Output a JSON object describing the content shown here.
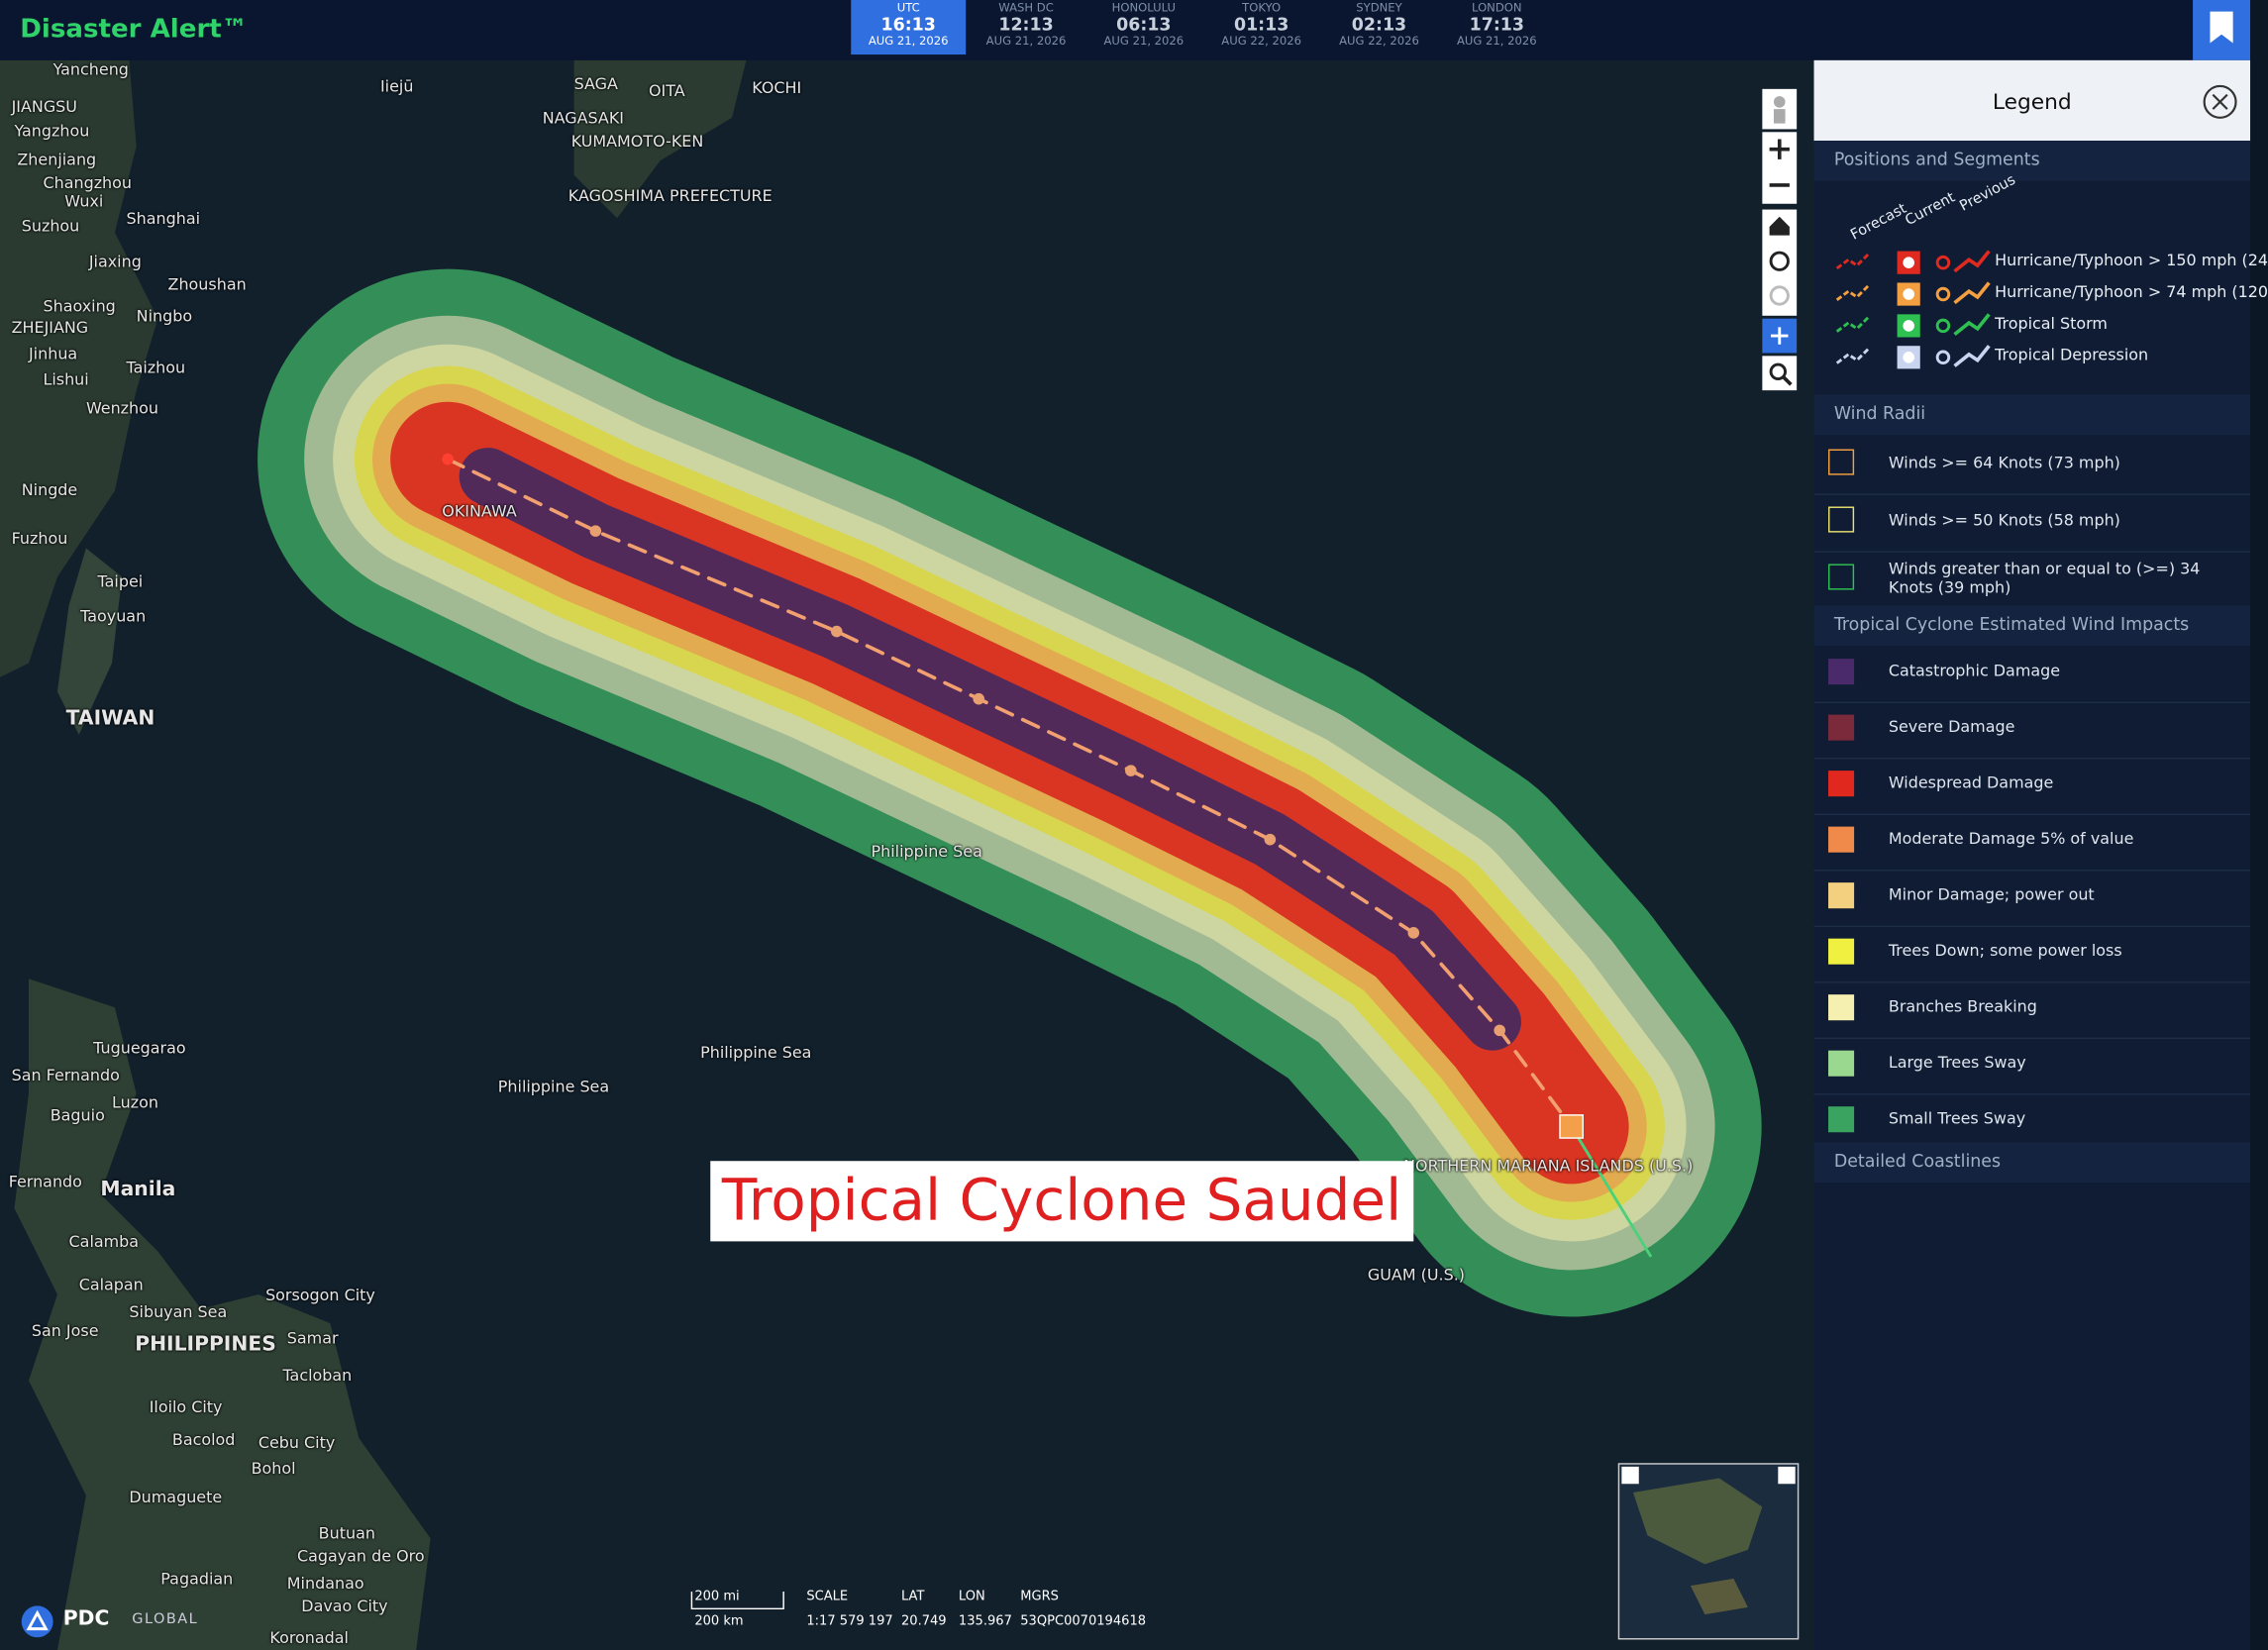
{
  "header": {
    "title": "Disaster Alert™"
  },
  "clocks": [
    {
      "zone": "UTC",
      "time": "16:13",
      "date": "AUG 21, 2026"
    },
    {
      "zone": "WASH DC",
      "time": "12:13",
      "date": "AUG 21, 2026"
    },
    {
      "zone": "HONOLULU",
      "time": "06:13",
      "date": "AUG 21, 2026"
    },
    {
      "zone": "TOKYO",
      "time": "01:13",
      "date": "AUG 22, 2026"
    },
    {
      "zone": "SYDNEY",
      "time": "02:13",
      "date": "AUG 22, 2026"
    },
    {
      "zone": "LONDON",
      "time": "17:13",
      "date": "AUG 21, 2026"
    }
  ],
  "legend": {
    "title": "Legend",
    "positions": {
      "title": "Positions and Segments",
      "columns": [
        "Forecast",
        "Current",
        "Previous"
      ],
      "items": [
        "Hurricane/Typhoon > 150 mph (24",
        "Hurricane/Typhoon > 74 mph (120",
        "Tropical Storm",
        "Tropical Depression"
      ]
    },
    "wind_radii": {
      "title": "Wind Radii",
      "items": [
        "Winds >= 64 Knots (73 mph)",
        "Winds >= 50 Knots (58 mph)",
        "Winds greater than or equal to (>=) 34 Knots (39 mph)"
      ]
    },
    "impacts": {
      "title": "Tropical Cyclone Estimated Wind Impacts",
      "items": [
        "Catastrophic Damage",
        "Severe Damage",
        "Widespread Damage",
        "Moderate Damage 5% of value",
        "Minor Damage; power out",
        "Trees Down; some power loss",
        "Branches Breaking",
        "Large Trees Sway",
        "Small Trees Sway"
      ]
    },
    "coastlines": {
      "title": "Detailed Coastlines"
    }
  },
  "map": {
    "banner": "Tropical Cyclone Saudel",
    "labels": [
      "Yancheng",
      "JIANGSU",
      "Yangzhou",
      "Zhenjiang",
      "Changzhou",
      "Wuxi",
      "Suzhou",
      "Shanghai",
      "Jiaxing",
      "Zhoushan",
      "Shaoxing",
      "Ningbo",
      "ZHEJIANG",
      "Jinhua",
      "Lishui",
      "Taizhou",
      "Wenzhou",
      "Ningde",
      "Fuzhou",
      "Taipei",
      "Taoyuan",
      "TAIWAN",
      "Iiejū",
      "SAGA",
      "NAGASAKI",
      "KUMAMOTO-KEN",
      "OITA",
      "KOCHI",
      "KAGOSHIMA PREFECTURE",
      "OKINAWA",
      "Philippine Sea",
      "Philippine Sea",
      "Philippine Sea",
      "NORTHERN MARIANA ISLANDS (U.S.)",
      "GUAM (U.S.)",
      "Tuguegarao",
      "San Fernando",
      "Luzon",
      "Baguio",
      "Fernando",
      "Manila",
      "Calamba",
      "Calapan",
      "Sorsogon City",
      "Sibuyan Sea",
      "San Jose",
      "PHILIPPINES",
      "Samar",
      "Tacloban",
      "Iloilo City",
      "Bacolod",
      "Cebu City",
      "Bohol",
      "Dumaguete",
      "Butuan",
      "Cagayan de Oro",
      "Mindanao",
      "Pagadian",
      "Davao City",
      "Koronadal"
    ]
  },
  "footer": {
    "brand": "PDC",
    "brand_sub": "GLOBAL",
    "scale_mi": "200 mi",
    "scale_km": "200 km",
    "readout_headers": [
      "SCALE",
      "LAT",
      "LON",
      "MGRS"
    ],
    "readout_values": [
      "1:17 579 197",
      "20.749",
      "135.967",
      "53QPC0070194618"
    ]
  }
}
